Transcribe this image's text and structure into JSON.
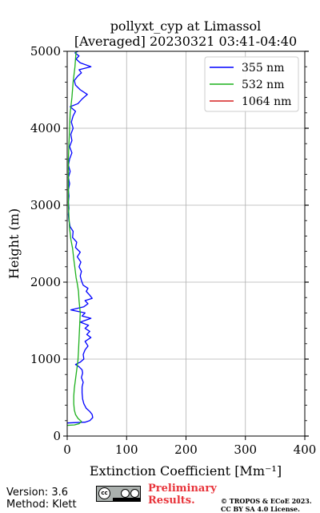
{
  "chart_data": {
    "type": "line",
    "title_line1": "pollyxt_cyp at Limassol",
    "title_line2": "[Averaged] 20230321 03:41-04:40",
    "xlabel": "Extinction Coefficient [Mm⁻¹]",
    "ylabel": "Height (m)",
    "xlim": [
      0,
      400
    ],
    "ylim": [
      0,
      5000
    ],
    "xticks": [
      "0",
      "100",
      "200",
      "300",
      "400"
    ],
    "yticks": [
      "0",
      "1000",
      "2000",
      "3000",
      "4000",
      "5000"
    ],
    "grid": true,
    "legend_position": "top-right",
    "series": [
      {
        "name": "355 nm",
        "color": "#0000ff",
        "points": [
          [
            0,
            170
          ],
          [
            15,
            175
          ],
          [
            30,
            180
          ],
          [
            38,
            200
          ],
          [
            43,
            240
          ],
          [
            42,
            280
          ],
          [
            38,
            320
          ],
          [
            32,
            360
          ],
          [
            28,
            420
          ],
          [
            26,
            480
          ],
          [
            25,
            560
          ],
          [
            25,
            640
          ],
          [
            27,
            700
          ],
          [
            24,
            760
          ],
          [
            26,
            820
          ],
          [
            25,
            860
          ],
          [
            20,
            900
          ],
          [
            14,
            930
          ],
          [
            22,
            960
          ],
          [
            28,
            1000
          ],
          [
            27,
            1060
          ],
          [
            30,
            1120
          ],
          [
            35,
            1170
          ],
          [
            30,
            1230
          ],
          [
            40,
            1280
          ],
          [
            33,
            1320
          ],
          [
            38,
            1360
          ],
          [
            30,
            1400
          ],
          [
            36,
            1440
          ],
          [
            22,
            1480
          ],
          [
            40,
            1530
          ],
          [
            25,
            1560
          ],
          [
            30,
            1600
          ],
          [
            6,
            1640
          ],
          [
            28,
            1680
          ],
          [
            35,
            1720
          ],
          [
            30,
            1760
          ],
          [
            42,
            1790
          ],
          [
            38,
            1830
          ],
          [
            32,
            1880
          ],
          [
            35,
            1920
          ],
          [
            27,
            1960
          ],
          [
            24,
            2020
          ],
          [
            22,
            2080
          ],
          [
            24,
            2140
          ],
          [
            20,
            2200
          ],
          [
            23,
            2260
          ],
          [
            17,
            2330
          ],
          [
            22,
            2390
          ],
          [
            14,
            2450
          ],
          [
            16,
            2520
          ],
          [
            9,
            2580
          ],
          [
            10,
            2660
          ],
          [
            5,
            2720
          ],
          [
            3,
            2800
          ],
          [
            2,
            2880
          ],
          [
            3,
            2960
          ],
          [
            2,
            3040
          ],
          [
            3,
            3120
          ],
          [
            2,
            3200
          ],
          [
            4,
            3280
          ],
          [
            2,
            3360
          ],
          [
            5,
            3440
          ],
          [
            2,
            3520
          ],
          [
            4,
            3600
          ],
          [
            8,
            3680
          ],
          [
            4,
            3760
          ],
          [
            8,
            3840
          ],
          [
            6,
            3920
          ],
          [
            10,
            4000
          ],
          [
            7,
            4080
          ],
          [
            10,
            4160
          ],
          [
            14,
            4220
          ],
          [
            5,
            4280
          ],
          [
            18,
            4320
          ],
          [
            25,
            4380
          ],
          [
            34,
            4440
          ],
          [
            22,
            4500
          ],
          [
            14,
            4560
          ],
          [
            12,
            4620
          ],
          [
            18,
            4680
          ],
          [
            24,
            4720
          ],
          [
            20,
            4760
          ],
          [
            40,
            4800
          ],
          [
            22,
            4850
          ],
          [
            15,
            4900
          ],
          [
            20,
            4940
          ],
          [
            13,
            4980
          ],
          [
            18,
            5000
          ]
        ]
      },
      {
        "name": "532 nm",
        "color": "#1cb01c",
        "points": [
          [
            0,
            140
          ],
          [
            12,
            145
          ],
          [
            20,
            160
          ],
          [
            24,
            190
          ],
          [
            18,
            230
          ],
          [
            14,
            280
          ],
          [
            12,
            340
          ],
          [
            11,
            420
          ],
          [
            11,
            520
          ],
          [
            12,
            620
          ],
          [
            14,
            740
          ],
          [
            16,
            860
          ],
          [
            18,
            980
          ],
          [
            19,
            1100
          ],
          [
            20,
            1260
          ],
          [
            21,
            1440
          ],
          [
            22,
            1600
          ],
          [
            20,
            1760
          ],
          [
            19,
            1880
          ],
          [
            17,
            1980
          ],
          [
            15,
            2060
          ],
          [
            13,
            2180
          ],
          [
            11,
            2300
          ],
          [
            9,
            2440
          ],
          [
            6,
            2560
          ],
          [
            4,
            2700
          ],
          [
            3,
            2850
          ],
          [
            2,
            3000
          ],
          [
            2,
            3200
          ],
          [
            2,
            3400
          ],
          [
            2,
            3600
          ],
          [
            3,
            3800
          ],
          [
            4,
            4000
          ],
          [
            5,
            4200
          ],
          [
            8,
            4400
          ],
          [
            10,
            4600
          ],
          [
            13,
            4800
          ],
          [
            15,
            5000
          ]
        ]
      },
      {
        "name": "1064 nm",
        "color": "#d62020",
        "points": []
      }
    ]
  },
  "footer": {
    "version": "Version: 3.6",
    "method": "Method: Klett",
    "preliminary_line1": "Preliminary",
    "preliminary_line2": "Results.",
    "copyright_line1": "© TROPOS & ECoE 2023.",
    "copyright_line2": "CC BY SA 4.0 License.",
    "license_badge_text": "cc"
  }
}
